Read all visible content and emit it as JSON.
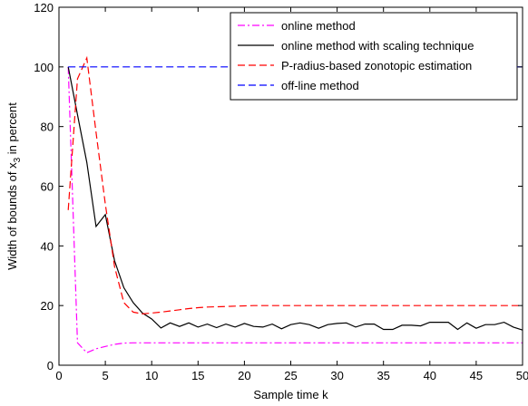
{
  "chart_data": {
    "type": "line",
    "title": "",
    "xlabel": "Sample time k",
    "ylabel_prefix": "Width of bounds  of x",
    "ylabel_subscript": "3",
    "ylabel_suffix": " in percent",
    "xlim": [
      0,
      50
    ],
    "ylim": [
      0,
      120
    ],
    "xticks": [
      0,
      5,
      10,
      15,
      20,
      25,
      30,
      35,
      40,
      45,
      50
    ],
    "yticks": [
      0,
      20,
      40,
      60,
      80,
      100,
      120
    ],
    "grid": false,
    "legend_position": "top-right",
    "series": [
      {
        "name": "online method",
        "color": "#ff00ff",
        "dash": "dashdot",
        "x": [
          1,
          2,
          3,
          4,
          5,
          6,
          7,
          8,
          9,
          10,
          11,
          12,
          13,
          14,
          15,
          16,
          17,
          18,
          19,
          20,
          21,
          22,
          23,
          24,
          25,
          26,
          27,
          28,
          29,
          30,
          31,
          32,
          33,
          34,
          35,
          36,
          37,
          38,
          39,
          40,
          41,
          42,
          43,
          44,
          45,
          46,
          47,
          48,
          49,
          50
        ],
        "y": [
          100,
          7.5,
          4.2,
          5.5,
          6.3,
          7,
          7.4,
          7.5,
          7.5,
          7.5,
          7.5,
          7.5,
          7.5,
          7.5,
          7.5,
          7.5,
          7.5,
          7.5,
          7.5,
          7.5,
          7.5,
          7.5,
          7.5,
          7.5,
          7.5,
          7.5,
          7.5,
          7.5,
          7.5,
          7.5,
          7.5,
          7.5,
          7.5,
          7.5,
          7.5,
          7.5,
          7.5,
          7.5,
          7.5,
          7.5,
          7.5,
          7.5,
          7.5,
          7.5,
          7.5,
          7.5,
          7.5,
          7.5,
          7.5,
          7.5
        ]
      },
      {
        "name": "online method with scaling technique",
        "color": "#000000",
        "dash": "solid",
        "x": [
          1,
          2,
          3,
          4,
          5,
          6,
          7,
          8,
          9,
          10,
          11,
          12,
          13,
          14,
          15,
          16,
          17,
          18,
          19,
          20,
          21,
          22,
          23,
          24,
          25,
          26,
          27,
          28,
          29,
          30,
          31,
          32,
          33,
          34,
          35,
          36,
          37,
          38,
          39,
          40,
          41,
          42,
          43,
          44,
          45,
          46,
          47,
          48,
          49,
          50
        ],
        "y": [
          100,
          84,
          68,
          46.5,
          50.5,
          35,
          26,
          21,
          17.5,
          15.5,
          12.5,
          14.2,
          13,
          14.2,
          12.8,
          13.8,
          12.6,
          13.8,
          12.8,
          14,
          13,
          12.8,
          13.8,
          12.2,
          13.6,
          14.2,
          13.6,
          12.4,
          13.6,
          14,
          14.2,
          12.8,
          13.8,
          13.8,
          12,
          12,
          13.4,
          13.4,
          13.2,
          14.4,
          14.4,
          14.4,
          12,
          14.2,
          12.4,
          13.6,
          13.6,
          14.4,
          12.8,
          11.8
        ]
      },
      {
        "name": "P-radius-based zonotopic estimation",
        "color": "#ff0000",
        "dash": "dashed",
        "x": [
          1,
          2,
          3,
          4,
          5,
          6,
          7,
          8,
          9,
          10,
          11,
          12,
          13,
          14,
          15,
          16,
          17,
          18,
          19,
          20,
          21,
          22,
          23,
          24,
          25,
          26,
          27,
          28,
          29,
          30,
          31,
          32,
          33,
          34,
          35,
          36,
          37,
          38,
          39,
          40,
          41,
          42,
          43,
          44,
          45,
          46,
          47,
          48,
          49,
          50
        ],
        "y": [
          52,
          96,
          103,
          78,
          54,
          33,
          21,
          17.8,
          17.2,
          17.5,
          17.8,
          18.2,
          18.6,
          19,
          19.3,
          19.5,
          19.6,
          19.7,
          19.8,
          19.9,
          20,
          20,
          20,
          20,
          20,
          20,
          20,
          20,
          20,
          20,
          20,
          20,
          20,
          20,
          20,
          20,
          20,
          20,
          20,
          20,
          20,
          20,
          20,
          20,
          20,
          20,
          20,
          20,
          20,
          20
        ]
      },
      {
        "name": "off-line method",
        "color": "#0000ff",
        "dash": "dashed",
        "x": [
          1,
          50
        ],
        "y": [
          100,
          100
        ]
      }
    ]
  }
}
